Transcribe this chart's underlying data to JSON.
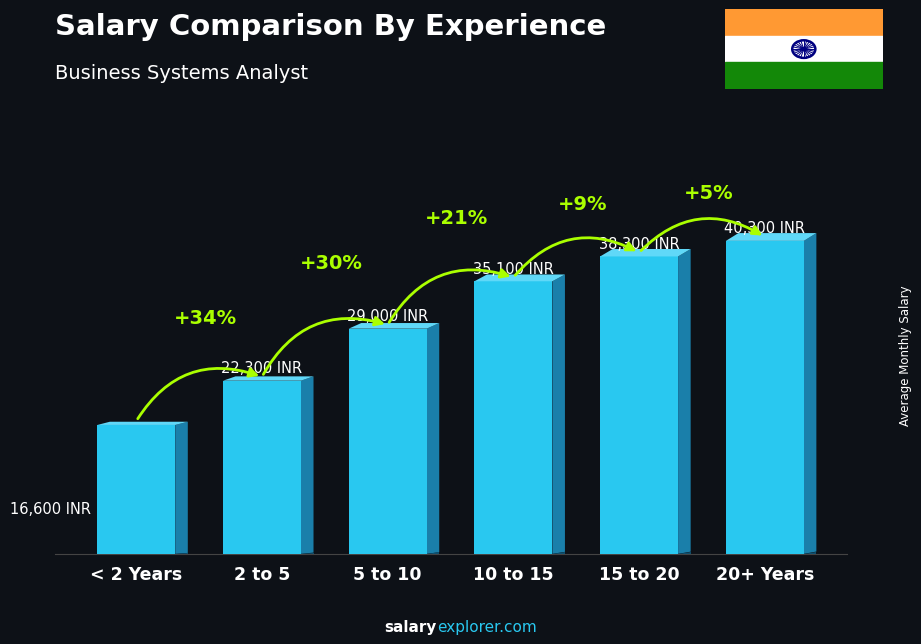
{
  "title": "Salary Comparison By Experience",
  "subtitle": "Business Systems Analyst",
  "categories": [
    "< 2 Years",
    "2 to 5",
    "5 to 10",
    "10 to 15",
    "15 to 20",
    "20+ Years"
  ],
  "values": [
    16600,
    22300,
    29000,
    35100,
    38300,
    40300
  ],
  "salary_labels": [
    "16,600 INR",
    "22,300 INR",
    "29,000 INR",
    "35,100 INR",
    "38,300 INR",
    "40,300 INR"
  ],
  "pct_changes": [
    "+34%",
    "+30%",
    "+21%",
    "+9%",
    "+5%"
  ],
  "bar_face_color": "#29C8F0",
  "bar_side_color": "#1A7FAA",
  "bar_top_color": "#60D8F8",
  "bar_shadow_color": "#0D5070",
  "bg_color": "#0d1117",
  "text_color": "#ffffff",
  "pct_color": "#AAFF00",
  "ylabel": "Average Monthly Salary",
  "source_bold": "salary",
  "source_light": "explorer.com",
  "bar_width": 0.62,
  "ylim": [
    0,
    52000
  ],
  "flag_saffron": "#FF9933",
  "flag_white": "#FFFFFF",
  "flag_green": "#138808",
  "flag_chakra": "#000080"
}
